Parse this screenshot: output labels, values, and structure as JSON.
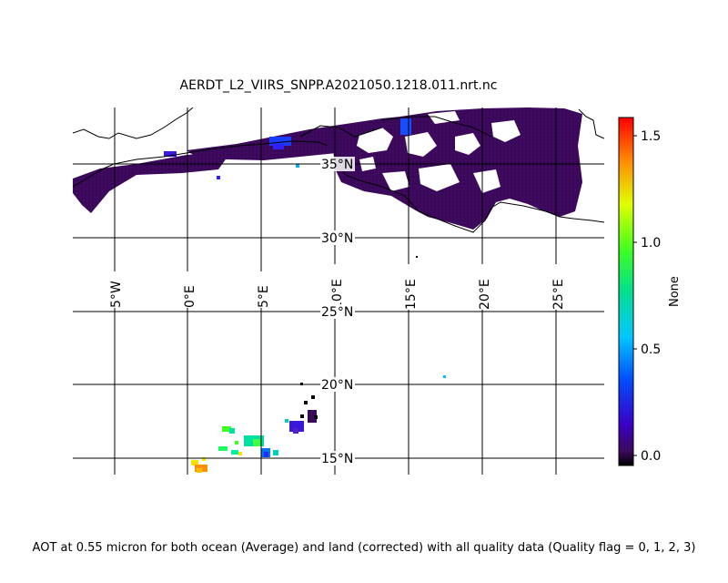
{
  "title": "AERDT_L2_VIIRS_SNPP.A2021050.1218.011.nrt.nc",
  "caption": "AOT at 0.55 micron for both ocean (Average) and land (corrected) with all quality data (Quality flag = 0, 1, 2, 3)",
  "map": {
    "lon_range": [
      -7.8,
      28.5
    ],
    "lat_range": [
      14.0,
      38.5
    ],
    "longitude_labels": [
      {
        "lon": -5,
        "text": "5°W"
      },
      {
        "lon": 0,
        "text": "0°E"
      },
      {
        "lon": 5,
        "text": "5°E"
      },
      {
        "lon": 10,
        "text": "10°E"
      },
      {
        "lon": 15,
        "text": "15°E"
      },
      {
        "lon": 20,
        "text": "20°E"
      },
      {
        "lon": 25,
        "text": "25°E"
      }
    ],
    "latitude_labels": [
      {
        "lat": 35,
        "text": "35°N"
      },
      {
        "lat": 30,
        "text": "30°N"
      },
      {
        "lat": 25,
        "text": "25°N"
      },
      {
        "lat": 20,
        "text": "20°N"
      },
      {
        "lat": 15,
        "text": "15°N"
      }
    ]
  },
  "colorbar": {
    "label": "None",
    "range": [
      -0.05,
      1.6
    ],
    "colormap": "jet",
    "ticks": [
      {
        "value": 0.0,
        "text": "0.0"
      },
      {
        "value": 0.5,
        "text": "0.5"
      },
      {
        "value": 1.0,
        "text": "1.0"
      },
      {
        "value": 1.5,
        "text": "1.5"
      }
    ]
  },
  "aot_clusters": [
    {
      "lon": 20.0,
      "lat": 35.0,
      "value": 0.1
    },
    {
      "lon": 15.0,
      "lat": 34.0,
      "value": 0.1
    },
    {
      "lon": 5.0,
      "lat": 17.0,
      "value": 0.8
    },
    {
      "lon": 2.0,
      "lat": 14.5,
      "value": 1.3
    },
    {
      "lon": 8.5,
      "lat": 18.5,
      "value": 0.1
    },
    {
      "lon": 17.5,
      "lat": 20.5,
      "value": 0.6
    }
  ]
}
